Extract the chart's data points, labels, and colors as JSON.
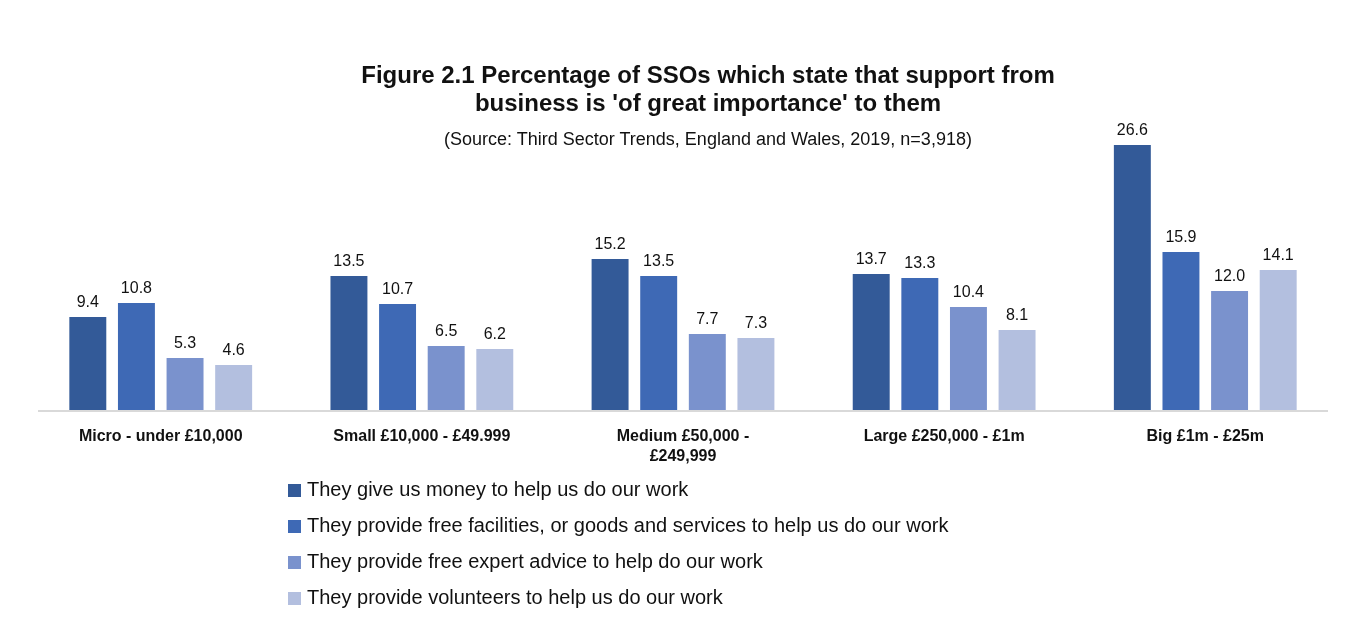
{
  "chart_data": {
    "type": "bar",
    "title": "Figure 2.1   Percentage of SSOs which state that support from business is 'of great importance' to them",
    "subtitle": "(Source: Third Sector Trends, England and Wales, 2019, n=3,918)",
    "categories": [
      "Micro - under £10,000",
      "Small £10,000 - £49.999",
      "Medium £50,000 - £249,999",
      "Large £250,000 - £1m",
      "Big £1m - £25m"
    ],
    "series": [
      {
        "name": "They give us money to help us do our work",
        "color": "#335a98",
        "values": [
          9.4,
          13.5,
          15.2,
          13.7,
          26.6
        ],
        "value_labels": [
          "9.4",
          "13.5",
          "15.2",
          "13.7",
          "26.6"
        ]
      },
      {
        "name": "They provide free facilities, or goods and services to help us do our work",
        "color": "#3e69b5",
        "values": [
          10.8,
          10.7,
          13.5,
          13.3,
          15.9
        ],
        "value_labels": [
          "10.8",
          "10.7",
          "13.5",
          "13.3",
          "15.9"
        ]
      },
      {
        "name": "They provide free expert advice to help do our work",
        "color": "#7a92cd",
        "values": [
          5.3,
          6.5,
          7.7,
          10.4,
          12.0
        ],
        "value_labels": [
          "5.3",
          "6.5",
          "7.7",
          "10.4",
          "12.0"
        ]
      },
      {
        "name": "They provide volunteers to help us do our work",
        "color": "#b3bfdf",
        "values": [
          4.6,
          6.2,
          7.3,
          8.1,
          14.1
        ],
        "value_labels": [
          "4.6",
          "6.2",
          "7.3",
          "8.1",
          "14.1"
        ]
      }
    ],
    "legend": "bottom"
  }
}
